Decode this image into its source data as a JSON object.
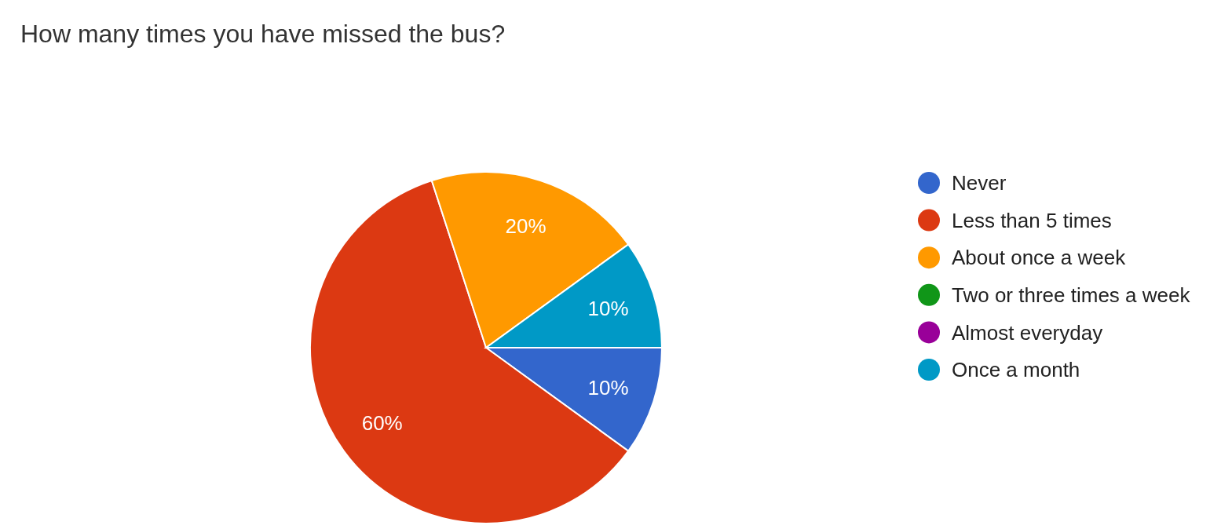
{
  "chart_data": {
    "type": "pie",
    "title": "How many times you have missed the bus?",
    "categories": [
      "Never",
      "Less than 5 times",
      "About once a week",
      "Two or three times a week",
      "Almost everyday",
      "Once a month"
    ],
    "values": [
      10,
      60,
      20,
      0,
      0,
      10
    ],
    "colors": [
      "#3366cc",
      "#dc3912",
      "#ff9900",
      "#109618",
      "#990099",
      "#0099c6"
    ],
    "value_labels": [
      "10%",
      "60%",
      "20%",
      null,
      null,
      "10%"
    ],
    "legend": "right"
  }
}
